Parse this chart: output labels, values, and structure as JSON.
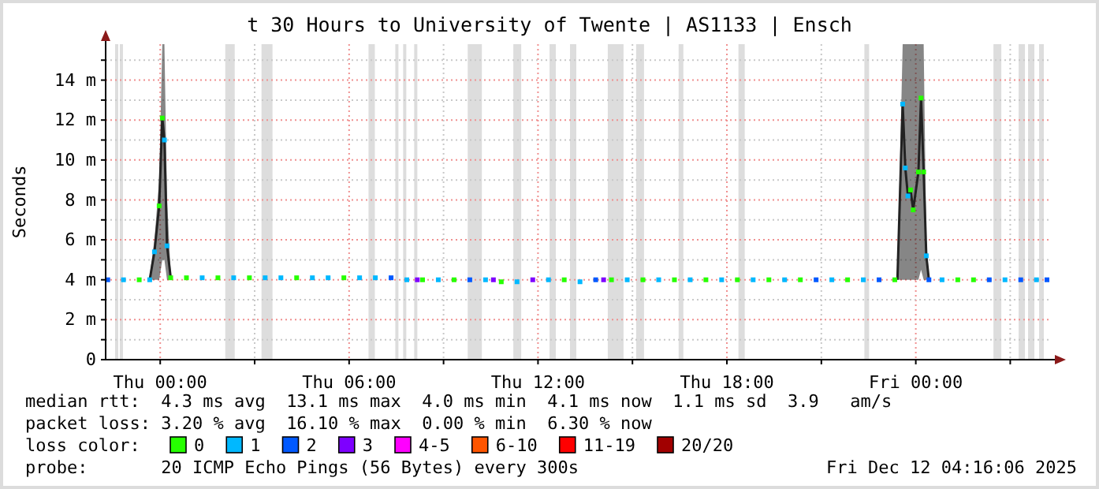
{
  "chart_data": {
    "type": "scatter",
    "title": "t 30 Hours to University of Twente | AS1133 | Ensch",
    "ylabel": "Seconds",
    "legend_title": "loss color:",
    "legend": "bottom",
    "grid": true,
    "marker": "square",
    "xlim": [
      "2025-12-10T22:16",
      "2025-12-12T04:16"
    ],
    "xticks": [
      {
        "value": "2025-12-11T00:00",
        "label": "Thu 00:00"
      },
      {
        "value": "2025-12-11T03:00",
        "label": null
      },
      {
        "value": "2025-12-11T06:00",
        "label": "Thu 06:00"
      },
      {
        "value": "2025-12-11T09:00",
        "label": null
      },
      {
        "value": "2025-12-11T12:00",
        "label": "Thu 12:00"
      },
      {
        "value": "2025-12-11T15:00",
        "label": null
      },
      {
        "value": "2025-12-11T18:00",
        "label": "Thu 18:00"
      },
      {
        "value": "2025-12-11T21:00",
        "label": null
      },
      {
        "value": "2025-12-12T00:00",
        "label": "Fri 00:00"
      },
      {
        "value": "2025-12-12T03:00",
        "label": null
      }
    ],
    "ylim": [
      0,
      15.8
    ],
    "yticks": [
      0,
      {
        "value": 1,
        "label": null
      },
      {
        "value": 2,
        "label": "2 m"
      },
      {
        "value": 3,
        "label": null
      },
      {
        "value": 4,
        "label": "4 m"
      },
      {
        "value": 5,
        "label": null
      },
      {
        "value": 6,
        "label": "6 m"
      },
      {
        "value": 7,
        "label": null
      },
      {
        "value": 8,
        "label": "8 m"
      },
      {
        "value": 9,
        "label": null
      },
      {
        "value": 10,
        "label": "10 m"
      },
      {
        "value": 11,
        "label": null
      },
      {
        "value": 12,
        "label": "12 m"
      },
      {
        "value": 13,
        "label": null
      },
      {
        "value": 14,
        "label": "14 m"
      },
      {
        "value": 15,
        "label": null
      }
    ],
    "bands": [
      {
        "axis": "x",
        "from": "2025-12-10T22:34",
        "to": "2025-12-10T22:40",
        "color": "#dddddd"
      },
      {
        "axis": "x",
        "from": "2025-12-10T22:43",
        "to": "2025-12-10T22:49",
        "color": "#dddddd"
      },
      {
        "axis": "x",
        "from": "2025-12-11T02:04",
        "to": "2025-12-11T02:22",
        "color": "#dddddd"
      },
      {
        "axis": "x",
        "from": "2025-12-11T03:13",
        "to": "2025-12-11T03:34",
        "color": "#dddddd"
      },
      {
        "axis": "x",
        "from": "2025-12-11T06:37",
        "to": "2025-12-11T06:49",
        "color": "#dddddd"
      },
      {
        "axis": "x",
        "from": "2025-12-11T07:28",
        "to": "2025-12-11T07:34",
        "color": "#dddddd"
      },
      {
        "axis": "x",
        "from": "2025-12-11T07:43",
        "to": "2025-12-11T07:49",
        "color": "#dddddd"
      },
      {
        "axis": "x",
        "from": "2025-12-11T08:04",
        "to": "2025-12-11T08:10",
        "color": "#dddddd"
      },
      {
        "axis": "x",
        "from": "2025-12-11T09:46",
        "to": "2025-12-11T10:13",
        "color": "#dddddd"
      },
      {
        "axis": "x",
        "from": "2025-12-11T11:13",
        "to": "2025-12-11T11:28",
        "color": "#dddddd"
      },
      {
        "axis": "x",
        "from": "2025-12-11T12:22",
        "to": "2025-12-11T12:34",
        "color": "#dddddd"
      },
      {
        "axis": "x",
        "from": "2025-12-11T13:01",
        "to": "2025-12-11T13:13",
        "color": "#dddddd"
      },
      {
        "axis": "x",
        "from": "2025-12-11T14:13",
        "to": "2025-12-11T14:43",
        "color": "#dddddd"
      },
      {
        "axis": "x",
        "from": "2025-12-11T15:07",
        "to": "2025-12-11T15:22",
        "color": "#dddddd"
      },
      {
        "axis": "x",
        "from": "2025-12-11T16:28",
        "to": "2025-12-11T16:37",
        "color": "#dddddd"
      },
      {
        "axis": "x",
        "from": "2025-12-11T18:22",
        "to": "2025-12-11T18:34",
        "color": "#dddddd"
      },
      {
        "axis": "x",
        "from": "2025-12-11T22:22",
        "to": "2025-12-11T22:31",
        "color": "#dddddd"
      },
      {
        "axis": "x",
        "from": "2025-12-12T02:28",
        "to": "2025-12-12T02:43",
        "color": "#dddddd"
      },
      {
        "axis": "x",
        "from": "2025-12-12T03:16",
        "to": "2025-12-12T03:28",
        "color": "#dddddd"
      },
      {
        "axis": "x",
        "from": "2025-12-12T03:34",
        "to": "2025-12-12T03:46",
        "color": "#dddddd"
      },
      {
        "axis": "x",
        "from": "2025-12-12T03:55",
        "to": "2025-12-12T04:04",
        "color": "#dddddd"
      }
    ],
    "series": [
      {
        "type": "line",
        "marker": "none",
        "color": "#222222",
        "x": [
          "2025-12-10T23:40",
          "2025-12-10T23:49",
          "2025-12-10T23:58",
          "2025-12-11T00:04",
          "2025-12-11T00:08",
          "2025-12-11T00:13",
          "2025-12-11T00:20",
          "2025-12-11T12:00",
          "2025-12-11T23:25",
          "2025-12-11T23:35",
          "2025-12-11T23:40",
          "2025-12-11T23:45",
          "2025-12-11T23:50",
          "2025-12-11T23:55",
          "2025-12-12T00:05",
          "2025-12-12T00:10",
          "2025-12-12T00:15",
          "2025-12-12T00:20",
          "2025-12-12T00:25"
        ],
        "values": [
          4.0,
          5.4,
          7.7,
          12.1,
          11.0,
          5.7,
          4.1,
          null,
          4.0,
          12.8,
          9.6,
          8.2,
          8.5,
          7.5,
          9.4,
          13.1,
          9.4,
          5.2,
          4.0
        ],
        "lower": [
          4.0,
          4.0,
          4.0,
          5.0,
          5.0,
          4.0,
          4.0,
          null,
          4.0,
          4.0,
          4.0,
          4.0,
          4.0,
          4.0,
          4.0,
          4.5,
          4.0,
          4.0,
          4.0
        ],
        "upper": [
          4.2,
          6.0,
          9.0,
          15.8,
          15.8,
          8.1,
          4.3,
          null,
          4.2,
          15.8,
          15.8,
          15.8,
          15.8,
          15.8,
          15.8,
          15.8,
          15.8,
          6.0,
          4.2
        ]
      },
      {
        "name": "0",
        "color": "#26ff00",
        "x": [
          "2025-12-10T23:20",
          "2025-12-10T23:58",
          "2025-12-11T00:04",
          "2025-12-11T00:20",
          "2025-12-11T00:50",
          "2025-12-11T01:50",
          "2025-12-11T02:50",
          "2025-12-11T04:20",
          "2025-12-11T05:50",
          "2025-12-11T08:20",
          "2025-12-11T09:20",
          "2025-12-11T10:50",
          "2025-12-11T12:50",
          "2025-12-11T14:20",
          "2025-12-11T15:20",
          "2025-12-11T16:20",
          "2025-12-11T17:20",
          "2025-12-11T18:20",
          "2025-12-11T19:20",
          "2025-12-11T20:20",
          "2025-12-11T21:50",
          "2025-12-11T23:20",
          "2025-12-11T23:50",
          "2025-12-11T23:55",
          "2025-12-12T00:05",
          "2025-12-12T00:10",
          "2025-12-12T00:15",
          "2025-12-12T01:20",
          "2025-12-12T01:50"
        ],
        "values": [
          4.0,
          7.7,
          12.1,
          4.1,
          4.1,
          4.1,
          4.1,
          4.1,
          4.1,
          4.0,
          4.0,
          3.9,
          4.0,
          4.0,
          4.0,
          4.0,
          4.0,
          4.0,
          4.0,
          4.0,
          4.0,
          4.0,
          8.5,
          7.5,
          9.4,
          13.1,
          9.4,
          4.0,
          4.0
        ]
      },
      {
        "name": "1",
        "color": "#00b8ff",
        "x": [
          "2025-12-10T22:50",
          "2025-12-10T23:40",
          "2025-12-10T23:49",
          "2025-12-11T00:08",
          "2025-12-11T00:13",
          "2025-12-11T01:20",
          "2025-12-11T02:20",
          "2025-12-11T03:20",
          "2025-12-11T03:50",
          "2025-12-11T04:50",
          "2025-12-11T05:20",
          "2025-12-11T06:20",
          "2025-12-11T06:50",
          "2025-12-11T07:50",
          "2025-12-11T08:50",
          "2025-12-11T10:20",
          "2025-12-11T11:20",
          "2025-12-11T12:20",
          "2025-12-11T13:20",
          "2025-12-11T14:50",
          "2025-12-11T15:50",
          "2025-12-11T16:50",
          "2025-12-11T17:50",
          "2025-12-11T18:50",
          "2025-12-11T19:50",
          "2025-12-11T21:20",
          "2025-12-11T22:20",
          "2025-12-11T23:35",
          "2025-12-11T23:40",
          "2025-12-11T23:45",
          "2025-12-12T00:20",
          "2025-12-12T00:50",
          "2025-12-12T02:50",
          "2025-12-12T03:50"
        ],
        "values": [
          4.0,
          4.0,
          5.4,
          11.0,
          5.7,
          4.1,
          4.1,
          4.1,
          4.1,
          4.1,
          4.1,
          4.1,
          4.1,
          4.0,
          4.0,
          4.0,
          3.9,
          4.0,
          3.9,
          4.0,
          4.0,
          4.0,
          4.0,
          4.0,
          4.0,
          4.0,
          4.0,
          12.8,
          9.6,
          8.2,
          5.2,
          4.0,
          4.0,
          4.0
        ]
      },
      {
        "name": "2",
        "color": "#0059ff",
        "x": [
          "2025-12-10T22:20",
          "2025-12-11T07:20",
          "2025-12-11T09:50",
          "2025-12-11T13:50",
          "2025-12-11T20:50",
          "2025-12-11T22:50",
          "2025-12-12T00:25",
          "2025-12-12T02:20",
          "2025-12-12T03:20",
          "2025-12-12T04:10"
        ],
        "values": [
          4.0,
          4.1,
          4.0,
          4.0,
          4.0,
          4.0,
          4.0,
          4.0,
          4.0,
          4.0
        ]
      },
      {
        "name": "3",
        "color": "#7e00ff",
        "x": [
          "2025-12-11T08:10",
          "2025-12-11T10:35",
          "2025-12-11T11:50",
          "2025-12-11T14:05"
        ],
        "values": [
          4.0,
          4.0,
          4.0,
          4.0
        ]
      },
      {
        "name": "4-5",
        "color": "#ff00ff"
      },
      {
        "name": "6-10",
        "color": "#ff5500"
      },
      {
        "name": "11-19",
        "color": "#ff0000"
      },
      {
        "name": "20/20",
        "color": "#a10000"
      }
    ],
    "annotations": [
      "median rtt:  4.3 ms avg  13.1 ms max  4.0 ms min  4.1 ms now  1.1 ms sd  3.9   am/s",
      "packet loss: 3.20 % avg  16.10 % max  0.00 % min  6.30 % now",
      "probe:       20 ICMP Echo Pings (56 Bytes) every 300s",
      "Fri Dec 12 04:16:06 2025"
    ]
  }
}
